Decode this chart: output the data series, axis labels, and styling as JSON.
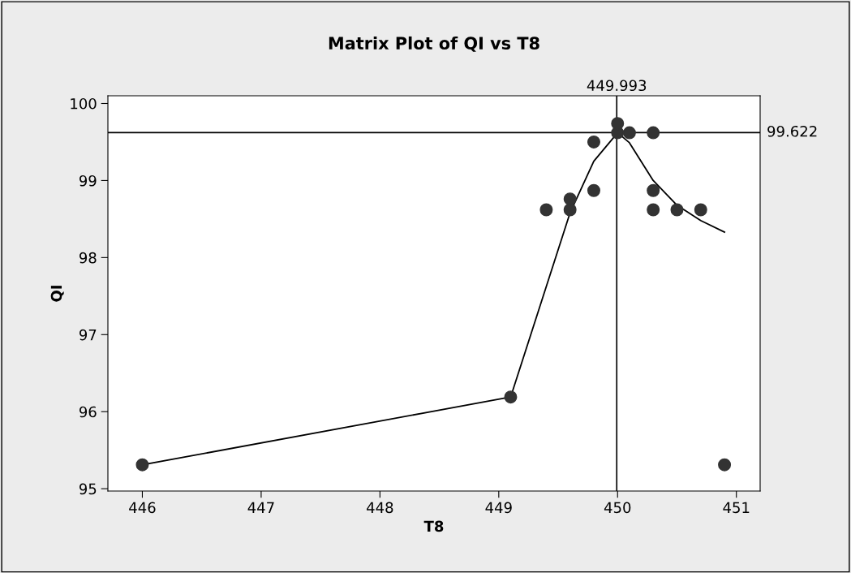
{
  "chart_data": {
    "type": "scatter",
    "title": "Matrix Plot of QI vs T8",
    "xlabel": "T8",
    "ylabel": "QI",
    "xlim": [
      445.71,
      451.2
    ],
    "xticks": [
      446,
      447,
      448,
      449,
      450,
      451
    ],
    "ylim": [
      94.97,
      100.1
    ],
    "yticks": [
      95,
      96,
      97,
      98,
      99,
      100
    ],
    "marker": "circle",
    "grid": false,
    "legend": false,
    "series": [
      {
        "color": "#333333",
        "x": [
          446.0,
          449.1,
          449.4,
          449.6,
          449.6,
          449.8,
          449.8,
          450.0,
          450.0,
          450.1,
          450.3,
          450.3,
          450.3,
          450.5,
          450.7,
          450.9
        ],
        "values": [
          95.31,
          96.19,
          98.62,
          98.62,
          98.76,
          98.87,
          99.5,
          99.62,
          99.74,
          99.62,
          99.62,
          98.87,
          98.62,
          98.62,
          98.62,
          95.31
        ]
      },
      {
        "type": "line",
        "color": "#000000",
        "marker": "none",
        "x": [
          446.0,
          449.1,
          449.6,
          449.8,
          450.0,
          450.1,
          450.3,
          450.5,
          450.7,
          450.9
        ],
        "values": [
          95.31,
          96.19,
          98.58,
          99.25,
          99.62,
          99.49,
          99.0,
          98.68,
          98.48,
          98.33
        ]
      }
    ],
    "ref_lines": [
      {
        "axis": "x",
        "value": 449.993,
        "label": "449.993",
        "color": "#000000"
      },
      {
        "axis": "y",
        "value": 99.622,
        "label": "99.622",
        "color": "#000000"
      }
    ]
  }
}
